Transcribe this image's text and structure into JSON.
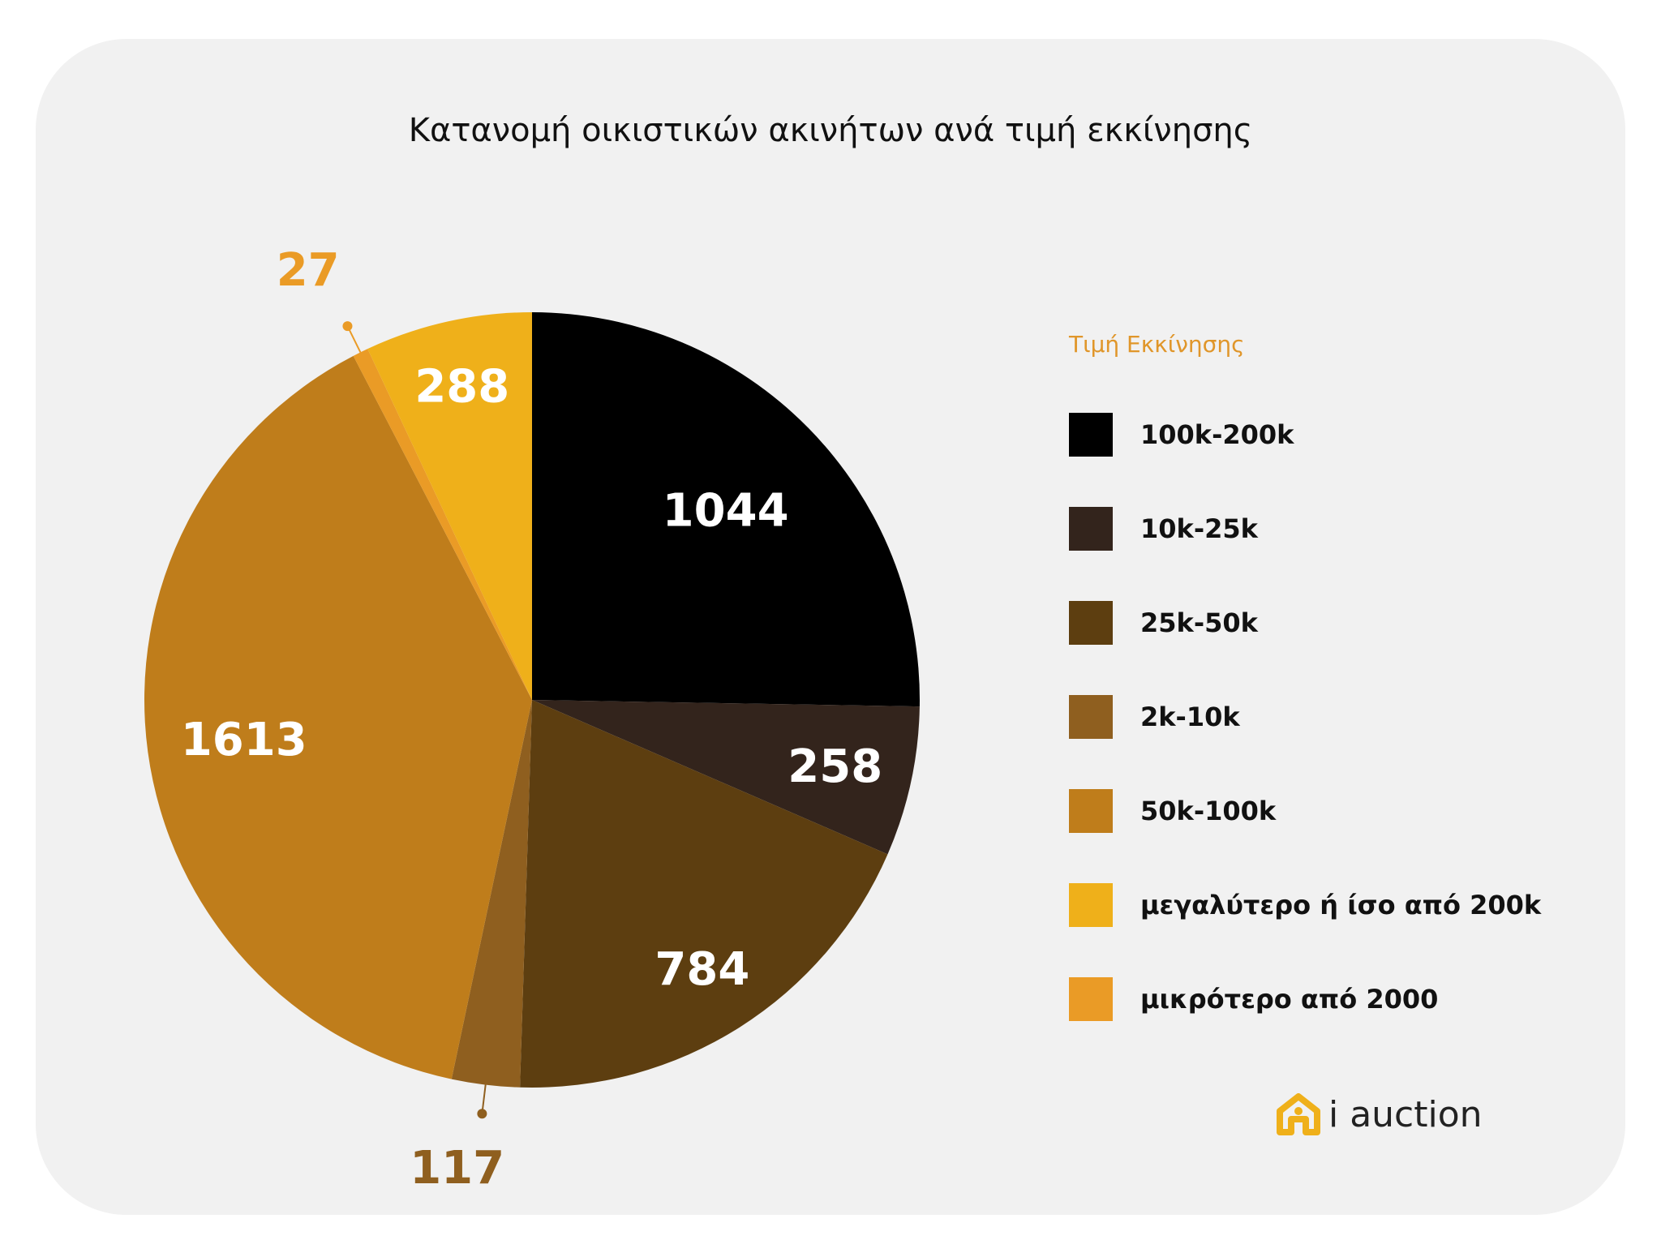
{
  "chart_data": {
    "type": "pie",
    "title": "Κατανομή οικιστικών ακινήτων ανά τιμή εκκίνησης",
    "legend_title": "Τιμή Εκκίνησης",
    "legend_position": "right",
    "slices": [
      {
        "label": "100k-200k",
        "value": 1044,
        "color": "#000000",
        "label_color": "#ffffff"
      },
      {
        "label": "10k-25k",
        "value": 258,
        "color": "#33241c",
        "label_color": "#ffffff"
      },
      {
        "label": "25k-50k",
        "value": 784,
        "color": "#5d3e10",
        "label_color": "#ffffff"
      },
      {
        "label": "2k-10k",
        "value": 117,
        "color": "#8f5f1f",
        "label_color": "#8f5f1f"
      },
      {
        "label": "50k-100k",
        "value": 1613,
        "color": "#bf7d1b",
        "label_color": "#ffffff"
      },
      {
        "label": "μικρότερο από 2000",
        "value": 27,
        "color": "#ea9b26",
        "label_color": "#ea9b26"
      },
      {
        "label": "μεγαλύτερο ή ίσο από 200k",
        "value": 288,
        "color": "#efb01a",
        "label_color": "#ffffff"
      }
    ],
    "legend_order": [
      "100k-200k",
      "10k-25k",
      "25k-50k",
      "2k-10k",
      "50k-100k",
      "μεγαλύτερο ή ίσο από 200k",
      "μικρότερο από 2000"
    ]
  },
  "brand": {
    "name": "i auction",
    "icon": "house-icon",
    "color": "#efb01a"
  }
}
